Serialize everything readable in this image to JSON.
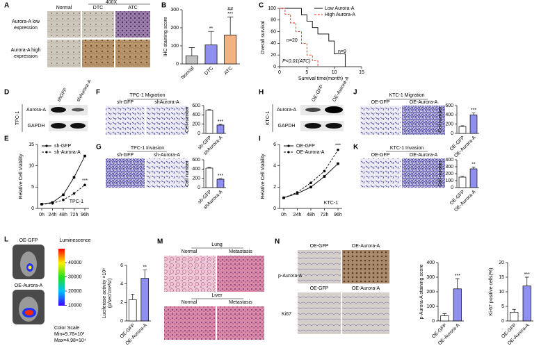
{
  "figure": {
    "panel_letters": [
      "A",
      "B",
      "C",
      "D",
      "E",
      "F",
      "G",
      "H",
      "I",
      "J",
      "K",
      "L",
      "M",
      "N"
    ],
    "texts": [
      "400X",
      "Normal",
      "DTC",
      "ATC",
      "Aurora-A low",
      "expression",
      "Aurora-A high",
      "expression",
      "TPC-1",
      "shGFP",
      "shAurora-A",
      "Aurora-A",
      "GAPDH",
      "TPC-1 Migration",
      "sh-GFP",
      "shAurora-A",
      "TPC-1 Invasion",
      "sh-GFP",
      "sh-Aurora-A",
      "KTC-1",
      "OE-GFP",
      "OE-Aurora-A",
      "Aurora-A",
      "GAPDH",
      "KTC-1 Migration",
      "OE-GFP",
      "OE-Aurora-A",
      "KTC-1 Invasion",
      "OE-GFP",
      "OE-Aurora-A",
      "OE-GFP",
      "Luminescence",
      "OE-Aurora-A",
      "Color Scale",
      "Min=9.76×10³",
      "Max=4.98×10⁴",
      "Lung",
      "Normal",
      "Metastasis",
      "Liver",
      "Normal",
      "Metastasis",
      "OE-GFP",
      "OE-Aurora-A",
      "p-Aurora-A",
      "OE-GFP",
      "OE-Aurora-A",
      "Ki67"
    ],
    "colorbar": {
      "lim": [
        9760,
        49800
      ],
      "ticks": [
        10000,
        20000,
        30000,
        40000
      ]
    }
  },
  "chart_data": [
    {
      "type": "bar",
      "ylabel": "IHC staining score",
      "categories": [
        "Normal",
        "DTC",
        "ATC"
      ],
      "values": [
        45,
        105,
        160
      ],
      "errors": [
        45,
        75,
        100
      ],
      "colors": [
        "#c0c0c0",
        "#8f8ff0",
        "#f4b183"
      ],
      "sig": [
        null,
        "**",
        "***"
      ],
      "sig2": [
        null,
        null,
        "##"
      ],
      "ylim": [
        0,
        300
      ],
      "yticks": [
        0,
        100,
        200,
        300
      ]
    },
    {
      "type": "km",
      "ylabel": "Overall survival",
      "xlabel": "Survival time(month)",
      "xlim": [
        0,
        15
      ],
      "xticks": [
        0,
        5,
        10,
        15
      ],
      "ylim": [
        0,
        100
      ],
      "yticks": [
        0,
        20,
        40,
        60,
        80,
        100
      ],
      "series": [
        {
          "name": "Low Aurora-A",
          "color": "#000000",
          "dash": false,
          "x": [
            0,
            4,
            4,
            5,
            5,
            6,
            6,
            7,
            7,
            9,
            9,
            10,
            10,
            12,
            12
          ],
          "values": [
            100,
            100,
            89,
            89,
            78,
            78,
            67,
            67,
            56,
            56,
            44,
            44,
            22,
            22,
            0
          ]
        },
        {
          "name": "High Aurora-A",
          "color": "#e8211c",
          "dash": true,
          "x": [
            0,
            1,
            1,
            2,
            2,
            3,
            3,
            4,
            4,
            5,
            5,
            6,
            6,
            7,
            7
          ],
          "values": [
            100,
            100,
            90,
            90,
            75,
            75,
            60,
            60,
            40,
            40,
            20,
            20,
            10,
            10,
            0
          ]
        }
      ],
      "notes": [
        "n=20",
        "n=9",
        "P<0.01(ATC)"
      ]
    },
    {
      "type": "line",
      "ylabel": "Relative Cell Viability",
      "categories": [
        "0h",
        "24h",
        "48h",
        "72h",
        "96h"
      ],
      "ylim": [
        0,
        15
      ],
      "yticks": [
        0,
        5,
        10,
        15
      ],
      "note": "TPC-1",
      "series": [
        {
          "name": "sh-GFP",
          "color": "#000000",
          "dash": false,
          "values": [
            1,
            1.4,
            3.2,
            7.3,
            12.3
          ]
        },
        {
          "name": "sh-Aurora-A",
          "color": "#000000",
          "dash": true,
          "values": [
            1,
            1.2,
            2.0,
            3.5,
            5.5
          ],
          "sig": "***"
        }
      ]
    },
    {
      "type": "bar",
      "ylabel": "Cell number",
      "categories": [
        "sh-GFP",
        "shAurora-A"
      ],
      "values": [
        500,
        180
      ],
      "errors": [
        12,
        15
      ],
      "colors": [
        "#ffffff",
        "#8f8ff0"
      ],
      "sig": [
        null,
        "***"
      ],
      "ylim": [
        0,
        600
      ],
      "yticks": [
        0,
        200,
        400,
        600
      ]
    },
    {
      "type": "bar",
      "ylabel": "Cell number",
      "categories": [
        "sh-GFP",
        "shAurora-A"
      ],
      "values": [
        420,
        180
      ],
      "errors": [
        15,
        12
      ],
      "colors": [
        "#ffffff",
        "#8f8ff0"
      ],
      "sig": [
        null,
        "***"
      ],
      "ylim": [
        0,
        600
      ],
      "yticks": [
        0,
        200,
        400,
        600
      ]
    },
    {
      "type": "line",
      "ylabel": "Relative Cell Viability",
      "categories": [
        "0h",
        "24h",
        "48h",
        "72h",
        "96h"
      ],
      "ylim": [
        0,
        6
      ],
      "yticks": [
        0,
        2,
        4,
        6
      ],
      "note": "KTC-1",
      "series": [
        {
          "name": "OE-GFP",
          "color": "#000000",
          "dash": false,
          "values": [
            1,
            1.4,
            2.0,
            3.0,
            4.2
          ]
        },
        {
          "name": "OE-Aurora-A",
          "color": "#000000",
          "dash": true,
          "values": [
            1,
            1.5,
            2.4,
            3.5,
            5.5
          ],
          "sig": "***"
        }
      ]
    },
    {
      "type": "bar",
      "ylabel": "Cell number",
      "categories": [
        "OE-GFP",
        "OE-Aurora-A"
      ],
      "values": [
        150,
        400
      ],
      "errors": [
        15,
        40
      ],
      "colors": [
        "#ffffff",
        "#8f8ff0"
      ],
      "sig": [
        null,
        "***"
      ],
      "ylim": [
        0,
        600
      ],
      "yticks": [
        0,
        200,
        400,
        600
      ]
    },
    {
      "type": "bar",
      "ylabel": "Cell number",
      "categories": [
        "OE-GFP",
        "OE-Aurora-A"
      ],
      "values": [
        150,
        270
      ],
      "errors": [
        12,
        25
      ],
      "colors": [
        "#ffffff",
        "#8f8ff0"
      ],
      "sig": [
        null,
        "**"
      ],
      "ylim": [
        0,
        400
      ],
      "yticks": [
        0,
        100,
        200,
        300,
        400
      ]
    },
    {
      "type": "bar",
      "ylabel": [
        "Luciferase activity ×10⁸",
        "(p/sec/cm²/sr)"
      ],
      "categories": [
        "OE-GFP",
        "OE-Aurora-A"
      ],
      "values": [
        2.3,
        4.6
      ],
      "errors": [
        0.6,
        0.9
      ],
      "colors": [
        "#ffffff",
        "#8f8ff0"
      ],
      "sig": [
        null,
        "**"
      ],
      "ylim": [
        0,
        6
      ],
      "yticks": [
        0,
        2,
        4,
        6
      ]
    },
    {
      "type": "bar",
      "ylabel": "p-Aurora-A staining score",
      "categories": [
        "OE-GFP",
        "OE-Aurora-A"
      ],
      "values": [
        35,
        220
      ],
      "errors": [
        15,
        70
      ],
      "colors": [
        "#ffffff",
        "#8f8ff0"
      ],
      "sig": [
        null,
        "***"
      ],
      "ylim": [
        0,
        400
      ],
      "yticks": [
        0,
        100,
        200,
        300,
        400
      ]
    },
    {
      "type": "bar",
      "ylabel": "Ki-67 positive cells(%)",
      "categories": [
        "OE-GFP",
        "OE-Aurora-A"
      ],
      "values": [
        3,
        12
      ],
      "errors": [
        1,
        3
      ],
      "colors": [
        "#ffffff",
        "#8f8ff0"
      ],
      "sig": [
        null,
        "***"
      ],
      "ylim": [
        0,
        20
      ],
      "yticks": [
        0,
        5,
        10,
        15,
        20
      ]
    }
  ]
}
